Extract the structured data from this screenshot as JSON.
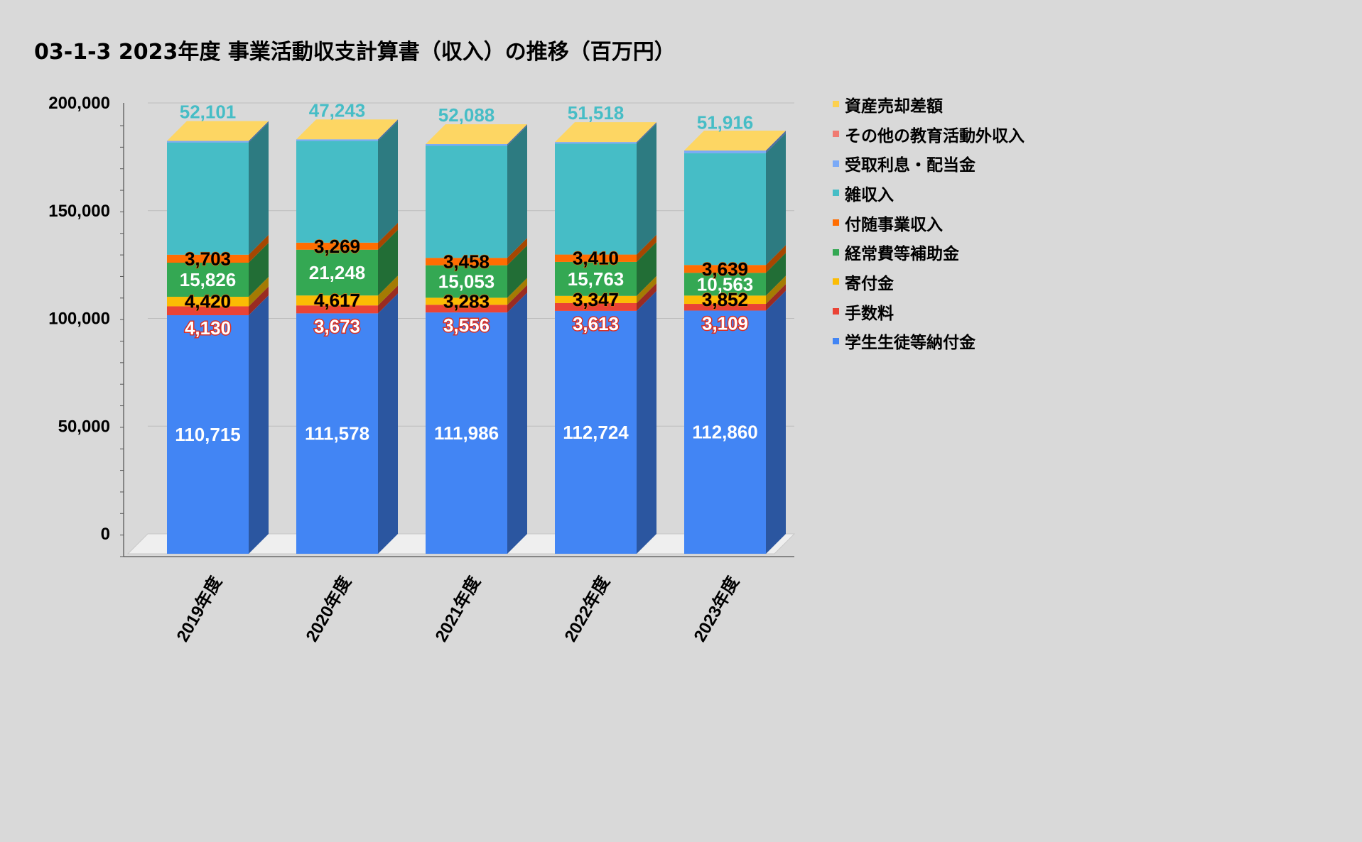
{
  "title": "03-1-3 2023年度 事業活動収支計算書（収入）の推移（百万円）",
  "chart_data": {
    "type": "bar",
    "stacked": true,
    "three_d": true,
    "categories": [
      "2019年度",
      "2020年度",
      "2021年度",
      "2022年度",
      "2023年度"
    ],
    "ylim": [
      0,
      200000
    ],
    "yticks": [
      "0",
      "50,000",
      "100,000",
      "150,000",
      "200,000"
    ],
    "grid": true,
    "legend_position": "right",
    "series": [
      {
        "name": "学生生徒等納付金",
        "color": "#4285f4",
        "side": "#2b56a0",
        "values": [
          110715,
          111578,
          111986,
          112724,
          112860
        ],
        "labels": [
          "110,715",
          "111,578",
          "111,986",
          "112,724",
          "112,860"
        ],
        "label_style": "white"
      },
      {
        "name": "手数料",
        "color": "#ea4335",
        "side": "#9a2b22",
        "values": [
          4130,
          3673,
          3556,
          3613,
          3109
        ],
        "labels": [
          "4,130",
          "3,673",
          "3,556",
          "3,613",
          "3,109"
        ],
        "label_style": "redstroke",
        "label_pos": "below"
      },
      {
        "name": "寄付金",
        "color": "#fbbc04",
        "side": "#a47b03",
        "values": [
          4420,
          4617,
          3283,
          3347,
          3852
        ],
        "labels": [
          "4,420",
          "4,617",
          "3,283",
          "3,347",
          "3,852"
        ],
        "label_style": "black"
      },
      {
        "name": "経常費等補助金",
        "color": "#34a853",
        "side": "#226e36",
        "values": [
          15826,
          21248,
          15053,
          15763,
          10563
        ],
        "labels": [
          "15,826",
          "21,248",
          "15,053",
          "15,763",
          "10,563"
        ],
        "label_style": "white"
      },
      {
        "name": "付随事業収入",
        "color": "#ff6d01",
        "side": "#a64701",
        "values": [
          3703,
          3269,
          3458,
          3410,
          3639
        ],
        "labels": [
          "3,703",
          "3,269",
          "3,458",
          "3,410",
          "3,639"
        ],
        "label_style": "black"
      },
      {
        "name": "雑収入",
        "color": "#46bdc6",
        "side": "#2d7b81",
        "values": [
          52101,
          47243,
          52088,
          51518,
          51916
        ],
        "labels": [
          "52,101",
          "47,243",
          "52,088",
          "51,518",
          "51,916"
        ],
        "label_style": "teal",
        "label_pos": "top"
      },
      {
        "name": "受取利息・配当金",
        "color": "#7baaf7",
        "side": "#506ea1",
        "values": [
          700,
          700,
          700,
          700,
          1200
        ],
        "labels": [
          "",
          "",
          "",
          "",
          ""
        ]
      },
      {
        "name": "その他の教育活動外収入",
        "color": "#f07b72",
        "side": "#9c504a",
        "values": [
          0,
          0,
          0,
          0,
          0
        ],
        "labels": [
          "",
          "",
          "",
          "",
          ""
        ]
      },
      {
        "name": "資産売却差額",
        "color": "#fcd04f",
        "side": "#a48733",
        "values": [
          0,
          0,
          0,
          0,
          0
        ],
        "labels": [
          "",
          "",
          "",
          "",
          ""
        ]
      }
    ]
  }
}
